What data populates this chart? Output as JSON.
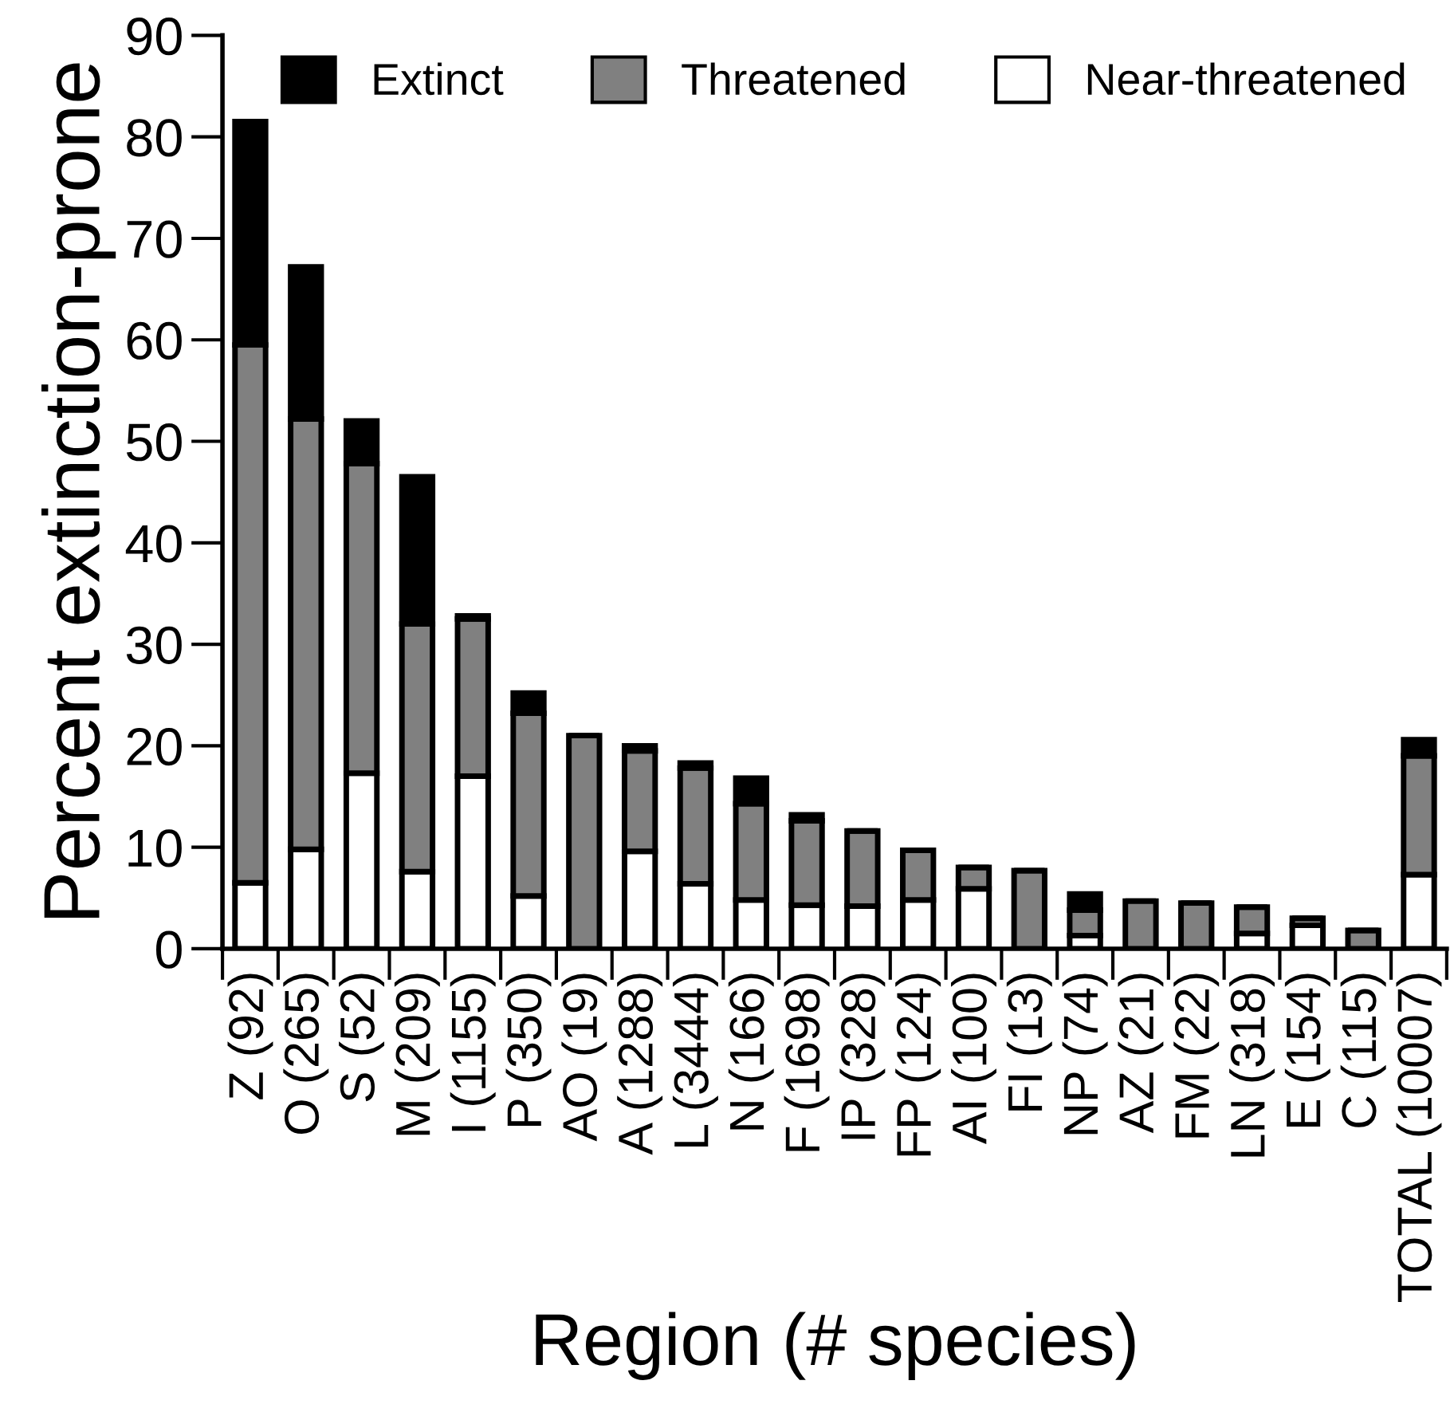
{
  "chart_data": {
    "type": "bar",
    "stacked": true,
    "xlabel": "Region (# species)",
    "ylabel": "Percent extinction-prone",
    "categories": [
      "Z (92)",
      "O (265)",
      "S (52)",
      "M (209)",
      "I (1155)",
      "P (350)",
      "AO (19)",
      "A (1288)",
      "L (3444)",
      "N (166)",
      "F (1698)",
      "IP (328)",
      "FP (124)",
      "AI (100)",
      "FI (13)",
      "NP (74)",
      "AZ (21)",
      "FM (22)",
      "LN (318)",
      "E (154)",
      "C (115)",
      "TOTAL (10007)"
    ],
    "series": [
      {
        "name": "Near-threatened",
        "color": "#ffffff",
        "values": [
          6.5,
          9.8,
          17.3,
          7.6,
          17,
          5.2,
          0,
          9.6,
          6.4,
          4.8,
          4.3,
          4.2,
          4.8,
          5.9,
          0,
          1.3,
          0,
          0,
          1.5,
          2.3,
          0,
          7.3
        ]
      },
      {
        "name": "Threatened",
        "color": "#808080",
        "values": [
          53,
          42.4,
          30.5,
          24.4,
          15.5,
          18,
          21,
          9.9,
          11.4,
          9.5,
          8.3,
          7.4,
          4.9,
          2.1,
          7.7,
          2.5,
          4.7,
          4.5,
          2.6,
          0.7,
          1.8,
          11.7
        ]
      },
      {
        "name": "Extinct",
        "color": "#000000",
        "values": [
          22,
          15,
          4.2,
          14.5,
          0.3,
          2,
          0,
          0.5,
          0.5,
          2.5,
          0.6,
          0,
          0,
          0,
          0,
          1.6,
          0,
          0,
          0,
          0,
          0,
          1.6
        ]
      }
    ],
    "ylim": [
      0,
      90
    ],
    "yticks": [
      0,
      10,
      20,
      30,
      40,
      50,
      60,
      70,
      80,
      90
    ],
    "grid": false,
    "legend": "top right"
  }
}
